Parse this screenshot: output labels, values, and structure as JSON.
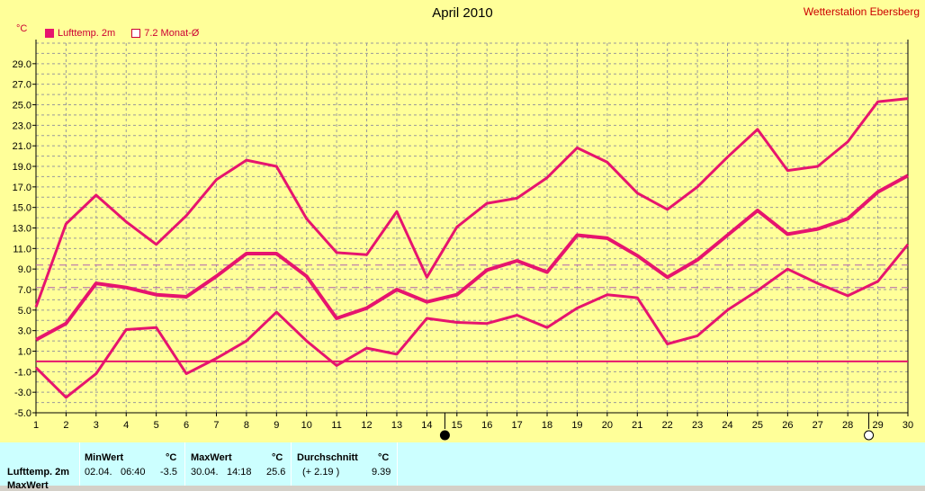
{
  "title": "April 2010",
  "station": "Wetterstation Ebersberg",
  "unit": "°C",
  "legend": [
    {
      "label": "Lufttemp. 2m",
      "style": "filled",
      "color": "#e6146e"
    },
    {
      "label": "7.2 Monat-Ø",
      "style": "empty",
      "color": "#cc0033"
    }
  ],
  "chart_data": {
    "type": "line",
    "x": [
      1,
      2,
      3,
      4,
      5,
      6,
      7,
      8,
      9,
      10,
      11,
      12,
      13,
      14,
      15,
      16,
      17,
      18,
      19,
      20,
      21,
      22,
      23,
      24,
      25,
      26,
      27,
      28,
      29,
      30
    ],
    "ylim": [
      -5.0,
      31.0
    ],
    "yticks": [
      "-5.0",
      "-3.0",
      "-1.0",
      "1.0",
      "3.0",
      "5.0",
      "7.0",
      "9.0",
      "11.0",
      "13.0",
      "15.0",
      "17.0",
      "19.0",
      "21.0",
      "23.0",
      "25.0",
      "27.0",
      "29.0"
    ],
    "grid": true,
    "legend_position": "top-left",
    "series": [
      {
        "name": "Lufttemp. 2m",
        "color": "#e6146e",
        "values": [
          5.3,
          13.4,
          16.2,
          13.6,
          11.4,
          14.2,
          17.7,
          19.6,
          19.0,
          13.9,
          10.6,
          10.4,
          14.6,
          8.2,
          13.1,
          15.4,
          15.9,
          17.9,
          20.8,
          19.4,
          16.4,
          14.8,
          17.0,
          19.9,
          22.6,
          18.6,
          19.0,
          21.4,
          25.3,
          25.6
        ]
      },
      {
        "name": "",
        "color": "#e6146e",
        "thick": true,
        "values": [
          2.1,
          3.7,
          7.6,
          7.2,
          6.5,
          6.3,
          8.3,
          10.5,
          10.5,
          8.3,
          4.2,
          5.2,
          7.0,
          5.8,
          6.5,
          8.9,
          9.8,
          8.7,
          12.3,
          12.0,
          10.3,
          8.2,
          9.9,
          12.3,
          14.7,
          12.4,
          12.9,
          13.9,
          16.5,
          18.1
        ]
      },
      {
        "name": "",
        "color": "#e6146e",
        "values": [
          -0.6,
          -3.5,
          -1.2,
          3.1,
          3.3,
          -1.2,
          0.3,
          2.0,
          4.8,
          2.0,
          -0.4,
          1.3,
          0.7,
          4.2,
          3.8,
          3.7,
          4.5,
          3.3,
          5.2,
          6.5,
          6.2,
          1.7,
          2.5,
          5.0,
          6.9,
          9.0,
          7.6,
          6.4,
          7.8,
          11.4
        ]
      }
    ],
    "reference_lines": [
      {
        "value": 0.0,
        "style": "solid",
        "color": "#e6146e"
      },
      {
        "value": 9.39,
        "style": "dashed",
        "color": "#b060b0"
      },
      {
        "value": 7.2,
        "style": "dashed",
        "color": "#b060b0"
      }
    ],
    "moon_markers": [
      {
        "day": 14.6,
        "phase": "new"
      },
      {
        "day": 28.7,
        "phase": "full"
      }
    ]
  },
  "stats": {
    "row_label": "Lufttemp. 2m",
    "row2_label": "MaxWert",
    "min": {
      "header": "MinWert",
      "unit": "°C",
      "date": "02.04.",
      "time": "06:40",
      "value": "-3.5"
    },
    "max": {
      "header": "MaxWert",
      "unit": "°C",
      "date": "30.04.",
      "time": "14:18",
      "value": "25.6"
    },
    "avg": {
      "header": "Durchschnitt",
      "unit": "°C",
      "delta": "(+ 2.19 )",
      "value": "9.39"
    }
  }
}
